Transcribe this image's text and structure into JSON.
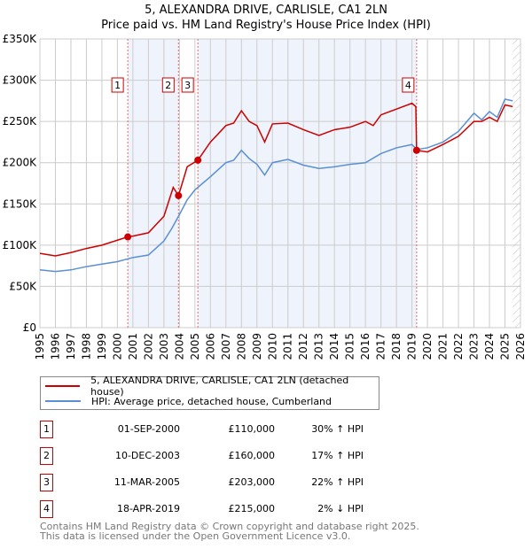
{
  "title": "5, ALEXANDRA DRIVE, CARLISLE, CA1 2LN",
  "subtitle": "Price paid vs. HM Land Registry's House Price Index (HPI)",
  "chart_data": {
    "type": "line",
    "title": "5, ALEXANDRA DRIVE, CARLISLE, CA1 2LN",
    "subtitle": "Price paid vs. HM Land Registry's House Price Index (HPI)",
    "xlim": [
      1995,
      2026
    ],
    "ylim": [
      0,
      350000
    ],
    "x_ticks": [
      "1995",
      "1996",
      "1997",
      "1998",
      "1999",
      "2000",
      "2001",
      "2002",
      "2003",
      "2004",
      "2005",
      "2006",
      "2007",
      "2008",
      "2009",
      "2010",
      "2011",
      "2012",
      "2013",
      "2014",
      "2015",
      "2016",
      "2017",
      "2018",
      "2019",
      "2020",
      "2021",
      "2022",
      "2023",
      "2024",
      "2025",
      "2026"
    ],
    "y_ticks": [
      {
        "v": 0,
        "l": "£0"
      },
      {
        "v": 50000,
        "l": "£50K"
      },
      {
        "v": 100000,
        "l": "£100K"
      },
      {
        "v": 150000,
        "l": "£150K"
      },
      {
        "v": 200000,
        "l": "£200K"
      },
      {
        "v": 250000,
        "l": "£250K"
      },
      {
        "v": 300000,
        "l": "£300K"
      },
      {
        "v": 350000,
        "l": "£350K"
      }
    ],
    "grid": true,
    "series": [
      {
        "name": "5, ALEXANDRA DRIVE, CARLISLE, CA1 2LN (detached house)",
        "color": "#cc0000",
        "x": [
          1995,
          1996,
          1997,
          1998,
          1999,
          2000,
          2000.67,
          2001,
          2002,
          2003,
          2003.6,
          2003.94,
          2004.5,
          2005.19,
          2006,
          2007,
          2007.5,
          2008,
          2008.5,
          2009,
          2009.5,
          2010,
          2011,
          2012,
          2013,
          2014,
          2015,
          2016,
          2016.5,
          2017,
          2018,
          2019,
          2019.25,
          2019.3,
          2020,
          2021,
          2022,
          2023,
          2023.5,
          2024,
          2024.5,
          2025,
          2025.5
        ],
        "y": [
          90000,
          87000,
          91000,
          96000,
          100000,
          106000,
          110000,
          111000,
          115000,
          135000,
          170000,
          160000,
          195000,
          203000,
          225000,
          245000,
          248000,
          263000,
          250000,
          245000,
          225000,
          247000,
          248000,
          240000,
          233000,
          240000,
          243000,
          250000,
          245000,
          258000,
          265000,
          272000,
          268000,
          215000,
          213000,
          222000,
          232000,
          250000,
          250000,
          255000,
          250000,
          270000,
          268000
        ]
      },
      {
        "name": "HPI: Average price, detached house, Cumberland",
        "color": "#5b8fd4",
        "x": [
          1995,
          1996,
          1997,
          1998,
          1999,
          2000,
          2001,
          2002,
          2003,
          2003.5,
          2004,
          2004.5,
          2005,
          2006,
          2007,
          2007.5,
          2008,
          2008.5,
          2009,
          2009.5,
          2010,
          2011,
          2012,
          2013,
          2014,
          2015,
          2016,
          2017,
          2018,
          2019,
          2019.3,
          2020,
          2021,
          2022,
          2023,
          2023.5,
          2024,
          2024.5,
          2025,
          2025.5
        ],
        "y": [
          70000,
          68000,
          70000,
          74000,
          77000,
          80000,
          85000,
          88000,
          105000,
          120000,
          137000,
          155000,
          167000,
          183000,
          200000,
          203000,
          215000,
          205000,
          198000,
          185000,
          200000,
          204000,
          197000,
          193000,
          195000,
          198000,
          200000,
          211000,
          218000,
          222000,
          216000,
          218000,
          225000,
          238000,
          260000,
          252000,
          262000,
          255000,
          277000,
          275000
        ]
      }
    ],
    "sales": [
      {
        "label": "1",
        "x": 2000.67,
        "y": 110000,
        "date": "01-SEP-2000",
        "price": "£110,000",
        "hpi": "30% ↑ HPI"
      },
      {
        "label": "2",
        "x": 2003.94,
        "y": 160000,
        "date": "10-DEC-2003",
        "price": "£160,000",
        "hpi": "17% ↑ HPI"
      },
      {
        "label": "3",
        "x": 2005.19,
        "y": 203000,
        "date": "11-MAR-2005",
        "price": "£203,000",
        "hpi": "22% ↑ HPI"
      },
      {
        "label": "4",
        "x": 2019.3,
        "y": 215000,
        "date": "18-APR-2019",
        "price": "£215,000",
        "hpi": "2% ↓ HPI"
      }
    ],
    "forecast_from": 2025.5
  },
  "legend": {
    "property": "5, ALEXANDRA DRIVE, CARLISLE, CA1 2LN (detached house)",
    "hpi": "HPI: Average price, detached house, Cumberland"
  },
  "footer": {
    "line1": "Contains HM Land Registry data © Crown copyright and database right 2025.",
    "line2": "This data is licensed under the Open Government Licence v3.0."
  }
}
